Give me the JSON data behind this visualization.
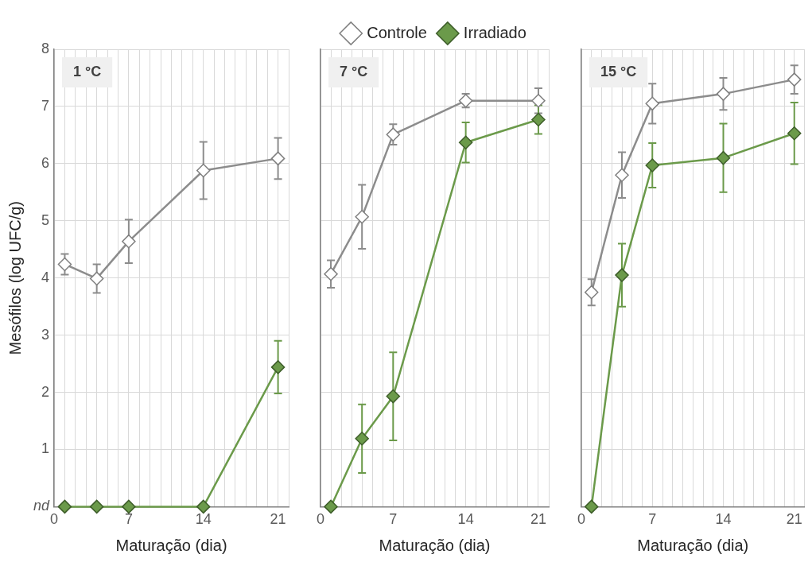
{
  "chart_data": [
    {
      "type": "line",
      "title": "1 °C",
      "xlabel": "Maturação (dia)",
      "ylabel": "Mesófilos (log UFC/g)",
      "x": [
        1,
        4,
        7,
        14,
        21
      ],
      "xlim": [
        0,
        22
      ],
      "xticks": [
        0,
        {
          "value": 1,
          "label": null
        },
        {
          "value": 2,
          "label": null
        },
        {
          "value": 3,
          "label": null
        },
        {
          "value": 4,
          "label": null
        },
        {
          "value": 5,
          "label": null
        },
        {
          "value": 6,
          "label": null
        },
        7,
        {
          "value": 8,
          "label": null
        },
        {
          "value": 9,
          "label": null
        },
        {
          "value": 10,
          "label": null
        },
        {
          "value": 11,
          "label": null
        },
        {
          "value": 12,
          "label": null
        },
        {
          "value": 13,
          "label": null
        },
        14,
        {
          "value": 15,
          "label": null
        },
        {
          "value": 16,
          "label": null
        },
        {
          "value": 17,
          "label": null
        },
        {
          "value": 18,
          "label": null
        },
        {
          "value": 19,
          "label": null
        },
        {
          "value": 20,
          "label": null
        },
        21,
        {
          "value": 22,
          "label": null
        }
      ],
      "ylim": [
        0,
        8
      ],
      "yticks": [
        {
          "value": 0,
          "label": "nd"
        },
        1,
        2,
        3,
        4,
        5,
        6,
        7,
        8
      ],
      "grid": true,
      "legend": false,
      "marker": "diamond",
      "series": [
        {
          "color": "#8c8c8c",
          "values": [
            4.24,
            3.99,
            4.64,
            5.88,
            6.09
          ],
          "errors": [
            0.18,
            0.25,
            0.38,
            0.5,
            0.36
          ]
        },
        {
          "color": "#6b9a4a",
          "values": [
            0,
            0,
            0,
            0,
            2.44
          ],
          "errors": [
            null,
            null,
            null,
            null,
            0.46
          ]
        }
      ]
    },
    {
      "type": "line",
      "title": "7 °C",
      "xlabel": "Maturação (dia)",
      "x": [
        1,
        4,
        7,
        14,
        21
      ],
      "xlim": [
        0,
        22
      ],
      "xticks": [
        0,
        {
          "value": 1,
          "label": null
        },
        {
          "value": 2,
          "label": null
        },
        {
          "value": 3,
          "label": null
        },
        {
          "value": 4,
          "label": null
        },
        {
          "value": 5,
          "label": null
        },
        {
          "value": 6,
          "label": null
        },
        7,
        {
          "value": 8,
          "label": null
        },
        {
          "value": 9,
          "label": null
        },
        {
          "value": 10,
          "label": null
        },
        {
          "value": 11,
          "label": null
        },
        {
          "value": 12,
          "label": null
        },
        {
          "value": 13,
          "label": null
        },
        14,
        {
          "value": 15,
          "label": null
        },
        {
          "value": 16,
          "label": null
        },
        {
          "value": 17,
          "label": null
        },
        {
          "value": 18,
          "label": null
        },
        {
          "value": 19,
          "label": null
        },
        {
          "value": 20,
          "label": null
        },
        21,
        {
          "value": 22,
          "label": null
        }
      ],
      "ylim": [
        0,
        8
      ],
      "yticks": [
        0,
        1,
        2,
        3,
        4,
        5,
        6,
        7,
        8
      ],
      "tick_labels": "x",
      "grid": true,
      "legend": "top",
      "marker": "diamond",
      "series": [
        {
          "name": "Controle",
          "color": "#8c8c8c",
          "values": [
            4.07,
            5.07,
            6.51,
            7.1,
            7.1
          ],
          "errors": [
            0.24,
            0.56,
            0.18,
            0.12,
            0.22
          ]
        },
        {
          "name": "Irradiado",
          "color": "#6b9a4a",
          "values": [
            0,
            1.19,
            1.93,
            6.37,
            6.77
          ],
          "errors": [
            null,
            0.6,
            0.77,
            0.35,
            0.25
          ]
        }
      ]
    },
    {
      "type": "line",
      "title": "15 °C",
      "xlabel": "Maturação (dia)",
      "x": [
        1,
        4,
        7,
        14,
        21
      ],
      "xlim": [
        0,
        22
      ],
      "xticks": [
        0,
        {
          "value": 1,
          "label": null
        },
        {
          "value": 2,
          "label": null
        },
        {
          "value": 3,
          "label": null
        },
        {
          "value": 4,
          "label": null
        },
        {
          "value": 5,
          "label": null
        },
        {
          "value": 6,
          "label": null
        },
        7,
        {
          "value": 8,
          "label": null
        },
        {
          "value": 9,
          "label": null
        },
        {
          "value": 10,
          "label": null
        },
        {
          "value": 11,
          "label": null
        },
        {
          "value": 12,
          "label": null
        },
        {
          "value": 13,
          "label": null
        },
        14,
        {
          "value": 15,
          "label": null
        },
        {
          "value": 16,
          "label": null
        },
        {
          "value": 17,
          "label": null
        },
        {
          "value": 18,
          "label": null
        },
        {
          "value": 19,
          "label": null
        },
        {
          "value": 20,
          "label": null
        },
        21,
        {
          "value": 22,
          "label": null
        }
      ],
      "ylim": [
        0,
        8
      ],
      "yticks": [
        0,
        1,
        2,
        3,
        4,
        5,
        6,
        7,
        8
      ],
      "tick_labels": "x",
      "grid": true,
      "legend": false,
      "marker": "diamond",
      "series": [
        {
          "color": "#8c8c8c",
          "values": [
            3.75,
            5.8,
            7.05,
            7.22,
            7.47
          ],
          "errors": [
            0.23,
            0.4,
            0.35,
            0.28,
            0.25
          ]
        },
        {
          "color": "#6b9a4a",
          "values": [
            0,
            4.05,
            5.97,
            6.1,
            6.53
          ],
          "errors": [
            null,
            0.55,
            0.39,
            0.6,
            0.54
          ]
        }
      ]
    }
  ]
}
